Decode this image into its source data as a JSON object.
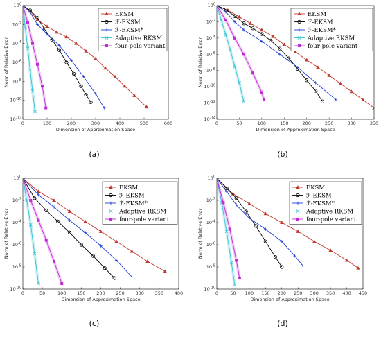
{
  "legend": [
    "EKSM",
    "ℱ-EKSM",
    "ℱ-EKSM*",
    "Adaptive RKSM",
    "four-pole variant"
  ],
  "series_colors": [
    "#c0392b",
    "#000000",
    "#1f3fd6",
    "#33c2d6",
    "#c12bd6"
  ],
  "series_markers": [
    "triangle",
    "circle",
    "plus",
    "x",
    "square"
  ],
  "chart_data": [
    {
      "type": "line",
      "panel_label": "(a)",
      "xlabel": "Dimension of Approximation Space",
      "ylabel": "Norm of Relative Error",
      "xlim": [
        0,
        600
      ],
      "xticks": [
        "0",
        "100",
        "200",
        "300",
        "400",
        "500",
        "600"
      ],
      "ylim_exp": [
        -12,
        0
      ],
      "yticks": [
        "10^0",
        "10^-2",
        "10^-4",
        "10^-6",
        "10^-8",
        "10^-10",
        "10^-12"
      ],
      "log_y": true,
      "legend_position": "top-right",
      "series": [
        {
          "name": "EKSM",
          "x": [
            0,
            30,
            60,
            100,
            140,
            180,
            220,
            260,
            300,
            340,
            380,
            420,
            460,
            510
          ],
          "y_exp": [
            0,
            -0.6,
            -1.5,
            -2.2,
            -2.8,
            -3.3,
            -4.0,
            -4.8,
            -5.6,
            -6.6,
            -7.5,
            -8.5,
            -9.5,
            -10.7
          ]
        },
        {
          "name": "ℱ-EKSM",
          "x": [
            0,
            30,
            60,
            90,
            120,
            150,
            180,
            210,
            240,
            260,
            280
          ],
          "y_exp": [
            0,
            -0.5,
            -1.3,
            -2.5,
            -3.6,
            -4.7,
            -6.0,
            -7.2,
            -8.5,
            -9.4,
            -10.2
          ]
        },
        {
          "name": "ℱ-EKSM*",
          "x": [
            0,
            30,
            60,
            100,
            150,
            200,
            250,
            300,
            335
          ],
          "y_exp": [
            0,
            -0.7,
            -2.0,
            -3.0,
            -4.2,
            -5.8,
            -7.5,
            -9.3,
            -10.8
          ]
        },
        {
          "name": "Adaptive RKSM",
          "x": [
            0,
            10,
            20,
            30,
            40,
            50
          ],
          "y_exp": [
            0,
            -2.3,
            -4.5,
            -6.8,
            -9.0,
            -11.2
          ]
        },
        {
          "name": "four-pole variant",
          "x": [
            0,
            20,
            40,
            60,
            80,
            95
          ],
          "y_exp": [
            0,
            -1.8,
            -4.0,
            -6.2,
            -8.5,
            -10.8
          ]
        }
      ]
    },
    {
      "type": "line",
      "panel_label": "(b)",
      "xlabel": "Dimension of Approximation Space",
      "ylabel": "Norm of Relative Error",
      "xlim": [
        0,
        350
      ],
      "xticks": [
        "0",
        "50",
        "100",
        "150",
        "200",
        "250",
        "300",
        "350"
      ],
      "ylim_exp": [
        -14,
        0
      ],
      "yticks": [
        "10^0",
        "10^-2",
        "10^-4",
        "10^-6",
        "10^-8",
        "10^-10",
        "10^-12",
        "10^-14"
      ],
      "log_y": true,
      "legend_position": "top-right",
      "series": [
        {
          "name": "EKSM",
          "x": [
            0,
            25,
            50,
            75,
            100,
            125,
            150,
            175,
            200,
            225,
            250,
            275,
            300,
            325,
            350
          ],
          "y_exp": [
            0,
            -0.6,
            -1.4,
            -2.2,
            -3.0,
            -3.8,
            -4.8,
            -5.7,
            -6.7,
            -7.6,
            -8.6,
            -9.6,
            -10.6,
            -11.6,
            -12.6
          ]
        },
        {
          "name": "ℱ-EKSM",
          "x": [
            0,
            20,
            40,
            60,
            80,
            100,
            120,
            140,
            160,
            180,
            200,
            220,
            235
          ],
          "y_exp": [
            0,
            -0.5,
            -1.3,
            -2.2,
            -2.8,
            -3.5,
            -4.3,
            -5.3,
            -6.5,
            -7.8,
            -9.2,
            -10.5,
            -11.8
          ]
        },
        {
          "name": "ℱ-EKSM*",
          "x": [
            0,
            20,
            40,
            60,
            100,
            140,
            180,
            220,
            265
          ],
          "y_exp": [
            0,
            -0.8,
            -2.0,
            -3.0,
            -4.4,
            -6.0,
            -7.6,
            -9.5,
            -11.6
          ]
        },
        {
          "name": "Adaptive RKSM",
          "x": [
            0,
            10,
            20,
            30,
            40,
            50,
            60
          ],
          "y_exp": [
            0,
            -1.8,
            -3.6,
            -5.5,
            -7.5,
            -9.5,
            -11.8
          ]
        },
        {
          "name": "four-pole variant",
          "x": [
            0,
            20,
            40,
            60,
            80,
            100,
            105
          ],
          "y_exp": [
            0,
            -1.8,
            -4.0,
            -6.0,
            -8.3,
            -10.7,
            -11.6
          ]
        }
      ]
    },
    {
      "type": "line",
      "panel_label": "(c)",
      "xlabel": "Dimension of Approximation Space",
      "ylabel": "Norm of Relative Error",
      "xlim": [
        0,
        400
      ],
      "xticks": [
        "0",
        "50",
        "100",
        "150",
        "200",
        "250",
        "300",
        "350",
        "400"
      ],
      "ylim_exp": [
        -10,
        0
      ],
      "yticks": [
        "10^0",
        "10^-2",
        "10^-4",
        "10^-6",
        "10^-8",
        "10^-10"
      ],
      "log_y": true,
      "legend_position": "top-right",
      "series": [
        {
          "name": "EKSM",
          "x": [
            0,
            40,
            80,
            120,
            160,
            200,
            240,
            280,
            320,
            365
          ],
          "y_exp": [
            0,
            -1.2,
            -2.0,
            -3.0,
            -3.9,
            -4.8,
            -5.7,
            -6.6,
            -7.5,
            -8.4
          ]
        },
        {
          "name": "ℱ-EKSM",
          "x": [
            0,
            30,
            60,
            90,
            120,
            150,
            180,
            210,
            235
          ],
          "y_exp": [
            0,
            -1.8,
            -2.9,
            -3.9,
            -4.9,
            -6.0,
            -7.0,
            -8.1,
            -9.0
          ]
        },
        {
          "name": "ℱ-EKSM*",
          "x": [
            0,
            40,
            80,
            120,
            160,
            200,
            240,
            280
          ],
          "y_exp": [
            0,
            -1.5,
            -2.6,
            -3.8,
            -4.9,
            -6.1,
            -7.4,
            -8.9
          ]
        },
        {
          "name": "Adaptive RKSM",
          "x": [
            0,
            10,
            20,
            30,
            40
          ],
          "y_exp": [
            0,
            -2.0,
            -4.2,
            -6.8,
            -9.5
          ]
        },
        {
          "name": "four-pole variant",
          "x": [
            0,
            20,
            40,
            60,
            80,
            100
          ],
          "y_exp": [
            0,
            -2.0,
            -3.8,
            -5.6,
            -7.5,
            -9.5
          ]
        }
      ]
    },
    {
      "type": "line",
      "panel_label": "(d)",
      "xlabel": "Dimension of Approximation Space",
      "ylabel": "Norm of Relative Error",
      "xlim": [
        0,
        450
      ],
      "xticks": [
        "0",
        "50",
        "100",
        "150",
        "200",
        "250",
        "300",
        "350",
        "400",
        "450"
      ],
      "ylim_exp": [
        -10,
        0
      ],
      "yticks": [
        "10^0",
        "10^-2",
        "10^-4",
        "10^-6",
        "10^-8",
        "10^-10"
      ],
      "log_y": true,
      "legend_position": "top-right",
      "series": [
        {
          "name": "EKSM",
          "x": [
            0,
            50,
            100,
            150,
            200,
            250,
            300,
            350,
            400,
            435
          ],
          "y_exp": [
            0,
            -1.4,
            -2.3,
            -3.2,
            -4.0,
            -4.8,
            -5.7,
            -6.5,
            -7.4,
            -8.1
          ]
        },
        {
          "name": "ℱ-EKSM",
          "x": [
            0,
            30,
            60,
            90,
            120,
            150,
            180,
            200
          ],
          "y_exp": [
            0,
            -0.9,
            -1.8,
            -3.0,
            -4.3,
            -5.7,
            -7.1,
            -8.0
          ]
        },
        {
          "name": "ℱ-EKSM*",
          "x": [
            0,
            30,
            60,
            100,
            150,
            200,
            240,
            265
          ],
          "y_exp": [
            0,
            -1.2,
            -2.4,
            -3.6,
            -4.6,
            -5.7,
            -7.0,
            -7.9
          ]
        },
        {
          "name": "Adaptive RKSM",
          "x": [
            0,
            15,
            30,
            45,
            55
          ],
          "y_exp": [
            0,
            -2.2,
            -4.8,
            -7.6,
            -9.6
          ]
        },
        {
          "name": "four-pole variant",
          "x": [
            0,
            20,
            40,
            60,
            70
          ],
          "y_exp": [
            0,
            -2.2,
            -4.6,
            -7.4,
            -9.0
          ]
        }
      ]
    }
  ]
}
